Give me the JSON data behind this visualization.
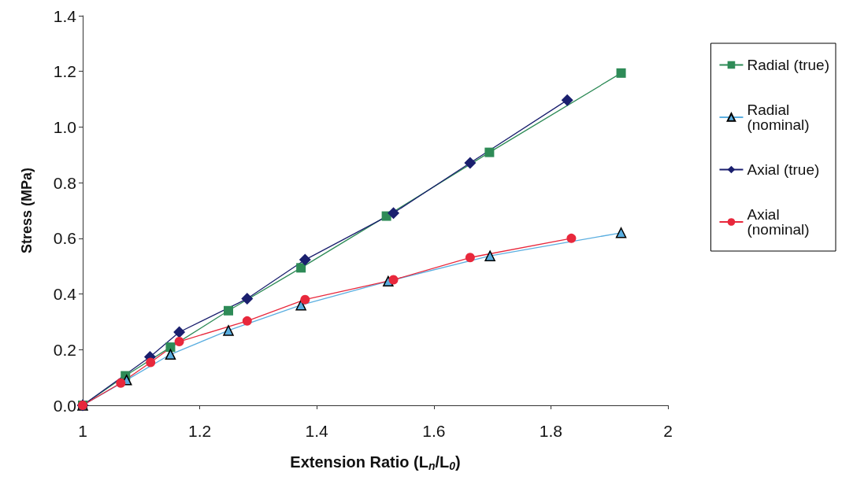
{
  "chart_data": {
    "type": "line",
    "xlabel": "Extension Ratio (L$_{n}$/L$_{0}$)",
    "ylabel": "Stress (MPa)",
    "xlim": [
      1,
      2
    ],
    "xticks": [
      1,
      1.2,
      1.4,
      1.6,
      1.8,
      2
    ],
    "ylim": [
      0,
      1.4
    ],
    "yticks": [
      {
        "value": 0,
        "label": "0.0"
      },
      {
        "value": 0.2,
        "label": "0.2"
      },
      {
        "value": 0.4,
        "label": "0.4"
      },
      {
        "value": 0.6,
        "label": "0.6"
      },
      {
        "value": 0.8,
        "label": "0.8"
      },
      {
        "value": 1.0,
        "label": "1.0"
      },
      {
        "value": 1.2,
        "label": "1.2"
      },
      {
        "value": 1.4,
        "label": "1.4"
      }
    ],
    "grid": false,
    "legend": "right",
    "series": [
      {
        "name": "Radial (true)",
        "color": "#2e8b57",
        "marker": "square",
        "x": [
          1,
          1.073,
          1.15,
          1.249,
          1.373,
          1.519,
          1.695,
          1.92
        ],
        "values": [
          0,
          0.106,
          0.209,
          0.34,
          0.494,
          0.68,
          0.909,
          1.194
        ]
      },
      {
        "name": "Radial (nominal)",
        "color": "#5aaee0",
        "marker": "triangle",
        "x": [
          1,
          1.075,
          1.15,
          1.249,
          1.373,
          1.522,
          1.696,
          1.92
        ],
        "values": [
          0,
          0.091,
          0.183,
          0.269,
          0.36,
          0.446,
          0.537,
          0.62
        ]
      },
      {
        "name": "Axial (true)",
        "color": "#1a1f6e",
        "marker": "diamond",
        "x": [
          1,
          1.115,
          1.165,
          1.281,
          1.38,
          1.531,
          1.662,
          1.828
        ],
        "values": [
          0,
          0.174,
          0.263,
          0.383,
          0.523,
          0.691,
          0.871,
          1.097
        ]
      },
      {
        "name": "Axial (nominal)",
        "color": "#e8283c",
        "marker": "circle",
        "x": [
          1,
          1.065,
          1.116,
          1.165,
          1.281,
          1.38,
          1.531,
          1.662,
          1.835
        ],
        "values": [
          0,
          0.08,
          0.154,
          0.229,
          0.303,
          0.38,
          0.451,
          0.531,
          0.6
        ]
      }
    ]
  }
}
